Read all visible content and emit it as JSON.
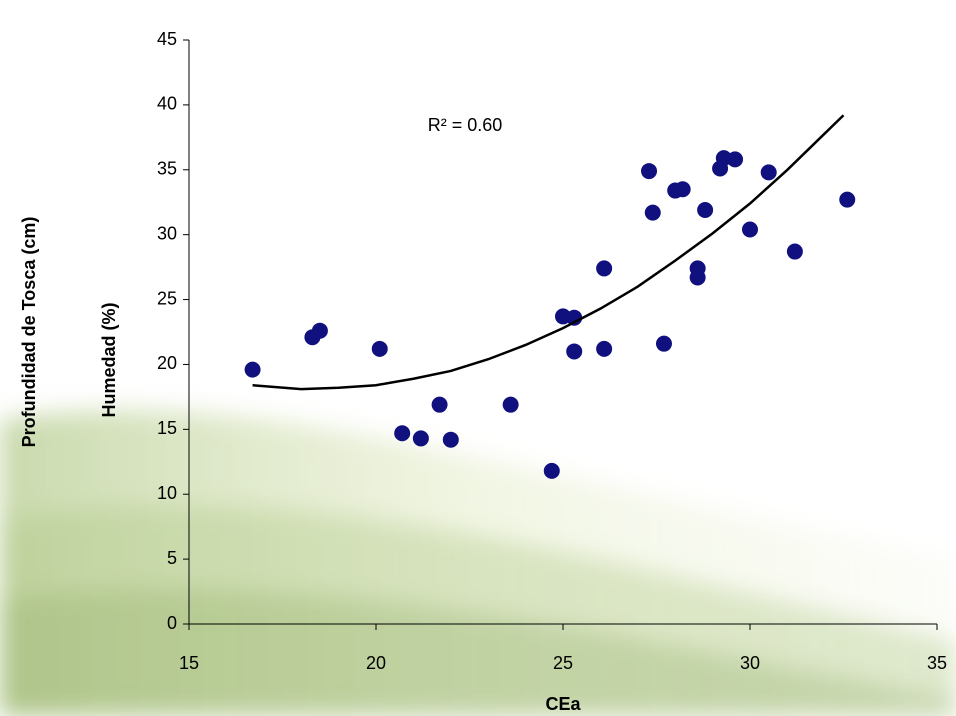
{
  "chart_data": {
    "type": "scatter",
    "x_label": "CEa",
    "y_labels": [
      "Profundidad de Tosca (cm)",
      "Humedad (%)"
    ],
    "annotation": "R² = 0.60",
    "xlim": [
      15,
      35
    ],
    "xticks": [
      15,
      20,
      25,
      30,
      35
    ],
    "ylim": [
      0,
      45
    ],
    "yticks": [
      0,
      5,
      10,
      15,
      20,
      25,
      30,
      35,
      40,
      45
    ],
    "grid": false,
    "series": [
      {
        "type": "scatter",
        "color": "#10107e",
        "x": [
          16.7,
          18.3,
          18.5,
          20.1,
          20.7,
          21.2,
          21.7,
          22.0,
          23.6,
          24.7,
          25.0,
          25.3,
          25.3,
          26.1,
          26.1,
          27.3,
          27.4,
          27.7,
          28.0,
          28.2,
          28.6,
          28.6,
          28.8,
          29.2,
          29.3,
          29.6,
          30.0,
          30.5,
          31.2,
          32.6
        ],
        "values": [
          19.6,
          22.1,
          22.6,
          21.2,
          14.7,
          14.3,
          16.9,
          14.2,
          16.9,
          11.8,
          23.7,
          23.6,
          21.0,
          27.4,
          21.2,
          34.9,
          31.7,
          21.6,
          33.4,
          33.5,
          27.4,
          26.7,
          31.9,
          35.1,
          35.9,
          35.8,
          30.4,
          34.8,
          28.7,
          32.7
        ]
      },
      {
        "type": "line",
        "color": "#000000",
        "x": [
          16.7,
          18,
          19,
          20,
          21,
          22,
          23,
          24,
          25,
          26,
          27,
          28,
          29,
          30,
          31,
          32,
          32.5
        ],
        "values": [
          18.4,
          18.1,
          18.2,
          18.4,
          18.9,
          19.5,
          20.4,
          21.5,
          22.8,
          24.3,
          26.0,
          28.0,
          30.1,
          32.4,
          35.0,
          37.8,
          39.2
        ]
      }
    ]
  }
}
